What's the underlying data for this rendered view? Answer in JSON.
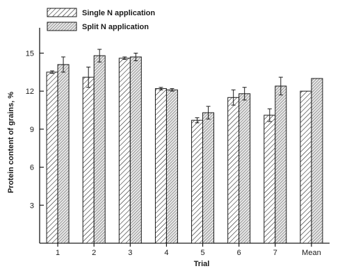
{
  "chart_data": {
    "type": "bar",
    "categories": [
      "1",
      "2",
      "3",
      "4",
      "5",
      "6",
      "7",
      "Mean"
    ],
    "series": [
      {
        "name": "Single N application",
        "values": [
          13.5,
          13.1,
          14.6,
          12.2,
          9.7,
          11.5,
          10.1,
          12.0
        ],
        "errors": [
          0.1,
          0.8,
          0.1,
          0.1,
          0.2,
          0.6,
          0.5,
          null
        ],
        "pattern": "diagonal-hatch"
      },
      {
        "name": "Split N application",
        "values": [
          14.1,
          14.8,
          14.7,
          12.1,
          10.3,
          11.8,
          12.4,
          13.0
        ],
        "errors": [
          0.6,
          0.5,
          0.3,
          0.1,
          0.5,
          0.5,
          0.7,
          null
        ],
        "pattern": "dense-hatch"
      }
    ],
    "xlabel": "Trial",
    "ylabel": "Protein content of grains, %",
    "ylim": [
      0,
      17
    ],
    "yticks": [
      3,
      6,
      9,
      12,
      15
    ],
    "grid": false,
    "legend_position": "top-left",
    "colors": {
      "ink": "#1a1a1a",
      "background": "#ffffff"
    }
  }
}
